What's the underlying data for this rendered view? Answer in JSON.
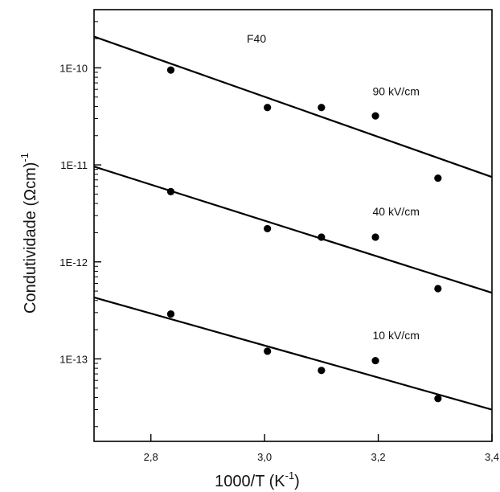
{
  "chart_data": {
    "type": "scatter",
    "title": "",
    "annotation": "F40",
    "xlabel": {
      "main": "1000/T  (K",
      "sup": "-1",
      "tail": ")"
    },
    "ylabel": {
      "main": "Condutividade  (Ωcm)",
      "sup": "-1"
    },
    "xlim": [
      2.7,
      3.4
    ],
    "ylim_log10": [
      -13.85,
      -9.4
    ],
    "yscale": "log",
    "grid": false,
    "x_ticks": [
      2.8,
      3.0,
      3.2,
      3.4
    ],
    "x_tick_labels": [
      "2,8",
      "3,0",
      "3,2",
      "3,4"
    ],
    "y_ticks": [
      1e-10,
      1e-11,
      1e-12,
      1e-13
    ],
    "y_tick_labels": [
      "1E-10",
      "1E-11",
      "1E-12",
      "1E-13"
    ],
    "series": [
      {
        "name": "90 kV/cm",
        "x": [
          2.835,
          3.005,
          3.1,
          3.195,
          3.305
        ],
        "y": [
          9.5e-11,
          3.9e-11,
          3.9e-11,
          3.2e-11,
          7.3e-12
        ],
        "fit": {
          "x": [
            2.7,
            3.4
          ],
          "y": [
            2.1e-10,
            7.5e-12
          ]
        }
      },
      {
        "name": "40 kV/cm",
        "x": [
          2.835,
          3.005,
          3.1,
          3.195,
          3.305
        ],
        "y": [
          5.3e-12,
          2.2e-12,
          1.8e-12,
          1.8e-12,
          5.3e-13
        ],
        "fit": {
          "x": [
            2.7,
            3.4
          ],
          "y": [
            9.6e-12,
            4.8e-13
          ]
        }
      },
      {
        "name": "10 kV/cm",
        "x": [
          2.835,
          3.005,
          3.1,
          3.195,
          3.305
        ],
        "y": [
          2.9e-13,
          1.2e-13,
          7.6e-14,
          9.6e-14,
          3.9e-14
        ],
        "fit": {
          "x": [
            2.7,
            3.4
          ],
          "y": [
            4.3e-13,
            3e-14
          ]
        }
      }
    ]
  }
}
